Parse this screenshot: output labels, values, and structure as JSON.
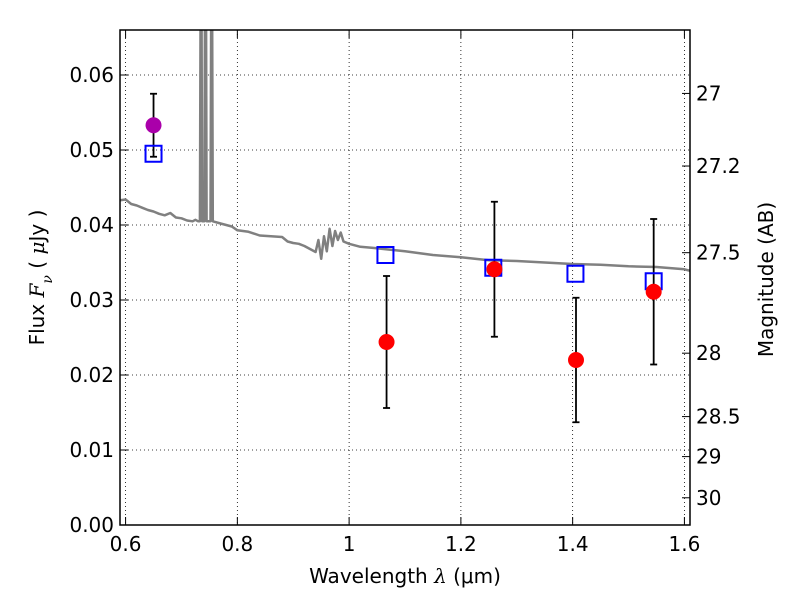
{
  "chart_data": {
    "type": "scatter",
    "xlabel": "Wavelength  λ (μm)",
    "xlabel_parts": {
      "pre": "Wavelength  ",
      "sym": "λ",
      "post": " (μm)"
    },
    "ylabel": "Flux  Fν  ( μJy )",
    "ylabel_parts": {
      "pre": "Flux  ",
      "sym": "F",
      "sub": "ν",
      "post1": "  ( ",
      "mu": "μ",
      "post2": "Jy )"
    },
    "y2label": "Magnitude (AB)",
    "xlim": [
      0.59,
      1.61
    ],
    "ylim": [
      0.0,
      0.066
    ],
    "grid": true,
    "x_ticks": [
      {
        "value": 0.6,
        "label": "0.6"
      },
      {
        "value": 0.8,
        "label": "0.8"
      },
      {
        "value": 1.0,
        "label": "1"
      },
      {
        "value": 1.2,
        "label": "1.2"
      },
      {
        "value": 1.4,
        "label": "1.4"
      },
      {
        "value": 1.6,
        "label": "1.6"
      }
    ],
    "y_ticks": [
      {
        "value": 0.0,
        "label": "0.00"
      },
      {
        "value": 0.01,
        "label": "0.01"
      },
      {
        "value": 0.02,
        "label": "0.02"
      },
      {
        "value": 0.03,
        "label": "0.03"
      },
      {
        "value": 0.04,
        "label": "0.04"
      },
      {
        "value": 0.05,
        "label": "0.05"
      },
      {
        "value": 0.06,
        "label": "0.06"
      }
    ],
    "y2_ticks": [
      {
        "label": "27",
        "mag": 27.0
      },
      {
        "label": "27.2",
        "mag": 27.2
      },
      {
        "label": "27.5",
        "mag": 27.5
      },
      {
        "label": "28",
        "mag": 28.0
      },
      {
        "label": "28.5",
        "mag": 28.5
      },
      {
        "label": "29",
        "mag": 29.0
      },
      {
        "label": "30",
        "mag": 30.0
      }
    ],
    "series": [
      {
        "kind": "line",
        "color": "#808080",
        "points": [
          [
            0.59,
            0.0433
          ],
          [
            0.6,
            0.0434
          ],
          [
            0.61,
            0.0428
          ],
          [
            0.62,
            0.0426
          ],
          [
            0.63,
            0.0423
          ],
          [
            0.64,
            0.042
          ],
          [
            0.65,
            0.0418
          ],
          [
            0.66,
            0.0415
          ],
          [
            0.67,
            0.0413
          ],
          [
            0.68,
            0.0416
          ],
          [
            0.69,
            0.041
          ],
          [
            0.7,
            0.0409
          ],
          [
            0.71,
            0.0406
          ],
          [
            0.72,
            0.0405
          ],
          [
            0.725,
            0.0407
          ],
          [
            0.73,
            0.0405
          ],
          [
            0.733,
            0.0405
          ],
          [
            0.734,
            0.066
          ],
          [
            0.736,
            0.066
          ],
          [
            0.737,
            0.0405
          ],
          [
            0.741,
            0.0405
          ],
          [
            0.742,
            0.066
          ],
          [
            0.744,
            0.066
          ],
          [
            0.745,
            0.0405
          ],
          [
            0.752,
            0.0405
          ],
          [
            0.753,
            0.066
          ],
          [
            0.755,
            0.066
          ],
          [
            0.756,
            0.0405
          ],
          [
            0.77,
            0.0402
          ],
          [
            0.79,
            0.0398
          ],
          [
            0.8,
            0.0393
          ],
          [
            0.82,
            0.0391
          ],
          [
            0.84,
            0.0386
          ],
          [
            0.86,
            0.0385
          ],
          [
            0.88,
            0.0384
          ],
          [
            0.89,
            0.0378
          ],
          [
            0.9,
            0.0376
          ],
          [
            0.91,
            0.0375
          ],
          [
            0.92,
            0.0372
          ],
          [
            0.93,
            0.0368
          ],
          [
            0.94,
            0.0364
          ],
          [
            0.945,
            0.038
          ],
          [
            0.95,
            0.0355
          ],
          [
            0.955,
            0.0385
          ],
          [
            0.96,
            0.0365
          ],
          [
            0.965,
            0.0395
          ],
          [
            0.97,
            0.0372
          ],
          [
            0.975,
            0.0392
          ],
          [
            0.98,
            0.038
          ],
          [
            0.985,
            0.039
          ],
          [
            0.99,
            0.0378
          ],
          [
            1.0,
            0.0375
          ],
          [
            1.02,
            0.0371
          ],
          [
            1.05,
            0.0369
          ],
          [
            1.1,
            0.0365
          ],
          [
            1.15,
            0.036
          ],
          [
            1.2,
            0.0357
          ],
          [
            1.25,
            0.0353
          ],
          [
            1.3,
            0.0352
          ],
          [
            1.35,
            0.035
          ],
          [
            1.4,
            0.0348
          ],
          [
            1.45,
            0.0347
          ],
          [
            1.5,
            0.0345
          ],
          [
            1.55,
            0.0344
          ],
          [
            1.6,
            0.0341
          ],
          [
            1.61,
            0.0339
          ]
        ]
      },
      {
        "kind": "open-squares",
        "color": "#0000ff",
        "points": [
          [
            0.65,
            0.0495
          ],
          [
            1.065,
            0.036
          ],
          [
            1.258,
            0.0343
          ],
          [
            1.405,
            0.0335
          ],
          [
            1.545,
            0.0325
          ]
        ]
      },
      {
        "kind": "filled-circles",
        "color": "#ff0000",
        "points": [
          {
            "x": 1.067,
            "y": 0.0244,
            "err": 0.0088
          },
          {
            "x": 1.26,
            "y": 0.0341,
            "err": 0.009
          },
          {
            "x": 1.406,
            "y": 0.022,
            "err": 0.0083
          },
          {
            "x": 1.545,
            "y": 0.0311,
            "err": 0.0097
          }
        ]
      },
      {
        "kind": "filled-circles",
        "color": "#aa00aa",
        "points": [
          {
            "x": 0.65,
            "y": 0.0533,
            "err": 0.0042
          }
        ]
      }
    ]
  }
}
